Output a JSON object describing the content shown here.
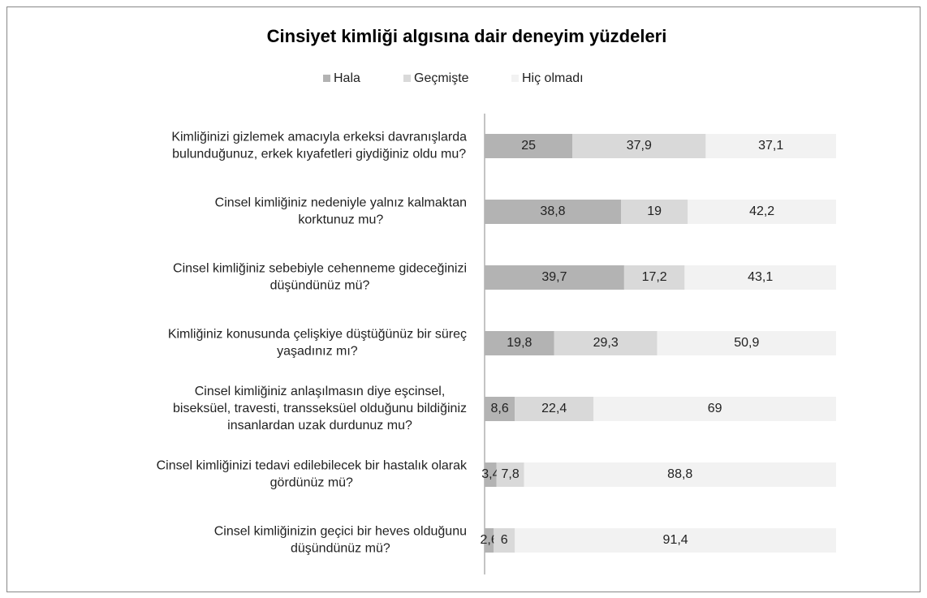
{
  "chart_data": {
    "type": "stacked-bar-horizontal",
    "title": "Cinsiyet kimliği algısına dair deneyim yüzdeleri",
    "categories": [
      [
        "Kimliğinizi gizlemek amacıyla erkeksi davranışlarda",
        "bulunduğunuz, erkek kıyafetleri giydiğiniz oldu mu?"
      ],
      [
        "Cinsel kimliğiniz nedeniyle yalnız kalmaktan",
        "korktunuz mu?"
      ],
      [
        "Cinsel kimliğiniz sebebiyle cehenneme gideceğinizi",
        "düşündünüz mü?"
      ],
      [
        "Kimliğiniz konusunda çelişkiye düştüğünüz bir süreç",
        "yaşadınız mı?"
      ],
      [
        "Cinsel kimliğiniz anlaşılmasın diye eşcinsel,",
        "biseksüel, travesti, transseksüel olduğunu bildiğiniz",
        "insanlardan uzak durdunuz mu?"
      ],
      [
        "Cinsel kimliğinizi tedavi edilebilecek bir hastalık olarak",
        "gördünüz mü?"
      ],
      [
        "Cinsel kimliğinizin geçici bir heves olduğunu",
        "düşündünüz mü?"
      ]
    ],
    "series": [
      {
        "name": "Hala",
        "color": "#b3b3b3",
        "values": [
          25,
          38.8,
          39.7,
          19.8,
          8.6,
          3.4,
          2.6
        ],
        "value_labels": [
          "25",
          "38,8",
          "39,7",
          "19,8",
          "8,6",
          "3,4",
          "2,6"
        ]
      },
      {
        "name": "Geçmişte",
        "color": "#d9d9d9",
        "values": [
          37.9,
          19,
          17.2,
          29.3,
          22.4,
          7.8,
          6
        ],
        "value_labels": [
          "37,9",
          "19",
          "17,2",
          "29,3",
          "22,4",
          "7,8",
          "6"
        ]
      },
      {
        "name": "Hiç olmadı",
        "color": "#f2f2f2",
        "values": [
          37.1,
          42.2,
          43.1,
          50.9,
          69,
          88.8,
          91.4
        ],
        "value_labels": [
          "37,1",
          "42,2",
          "43,1",
          "50,9",
          "69",
          "88,8",
          "91,4"
        ]
      }
    ],
    "xlim": [
      0,
      100
    ],
    "legend": "top"
  }
}
